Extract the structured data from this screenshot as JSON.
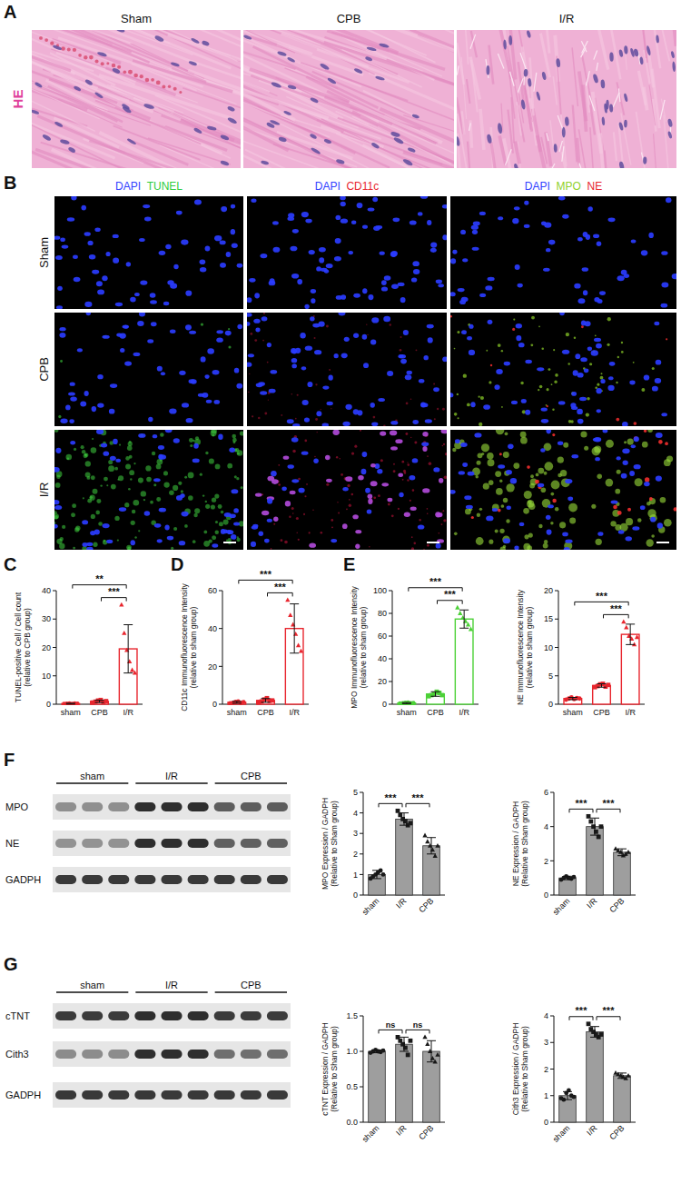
{
  "figure": {
    "panel_labels": [
      "A",
      "B",
      "C",
      "D",
      "E",
      "F",
      "G"
    ],
    "he": {
      "stain": "HE",
      "stain_color": "#e0409a",
      "columns": [
        "Sham",
        "CPB",
        "I/R"
      ]
    },
    "fluorescence": {
      "rows": [
        "Sham",
        "CPB",
        "I/R"
      ],
      "columns": [
        [
          {
            "text": "DAPI",
            "color": "#3040ff"
          },
          {
            "text": "TUNEL",
            "color": "#2ecc40"
          }
        ],
        [
          {
            "text": "DAPI",
            "color": "#3040ff"
          },
          {
            "text": "CD11c",
            "color": "#e8262e"
          }
        ],
        [
          {
            "text": "DAPI",
            "color": "#3040ff"
          },
          {
            "text": "MPO",
            "color": "#8fd12a"
          },
          {
            "text": "NE",
            "color": "#e8262e"
          }
        ]
      ]
    },
    "blots": [
      {
        "lanes": [
          "sham",
          "I/R",
          "CPB"
        ],
        "rows": [
          "MPO",
          "NE",
          "GADPH"
        ]
      },
      {
        "lanes": [
          "sham",
          "I/R",
          "CPB"
        ],
        "rows": [
          "cTNT",
          "Cith3",
          "GADPH"
        ]
      }
    ]
  },
  "chart_data": [
    {
      "type": "bar",
      "ylabel": [
        "TUNEL-positive Cell / Cell count",
        "(relative to CPB group)"
      ],
      "categories": [
        "sham",
        "CPB",
        "I/R"
      ],
      "values": [
        0.2,
        1.0,
        19.5
      ],
      "errors": [
        0.15,
        0.4,
        8.5
      ],
      "points": [
        [
          0.1,
          0.2,
          0.3,
          0.15,
          0.25,
          0.2
        ],
        [
          0.6,
          0.9,
          1.3,
          1.5,
          0.8,
          1.1
        ],
        [
          35,
          25,
          19,
          15,
          12,
          11
        ]
      ],
      "color": "#e8262e",
      "ylim": [
        0,
        40
      ],
      "yticks": [
        0,
        10,
        20,
        30,
        40
      ],
      "annotations": [
        {
          "pair": [
            1,
            2
          ],
          "text": "***"
        },
        {
          "pair": [
            0,
            2
          ],
          "text": "**"
        }
      ]
    },
    {
      "type": "bar",
      "ylabel": [
        "CD11c Immunofluorescence Intensity",
        "(relative to sham group)"
      ],
      "categories": [
        "sham",
        "CPB",
        "I/R"
      ],
      "values": [
        1.0,
        2.0,
        40
      ],
      "errors": [
        0.5,
        1.0,
        13
      ],
      "points": [
        [
          0.5,
          0.8,
          1.2,
          1.5,
          0.7,
          1.1
        ],
        [
          1.0,
          1.5,
          2.5,
          3.2,
          1.8,
          2.0
        ],
        [
          55,
          47,
          42,
          37,
          31,
          28
        ]
      ],
      "color": "#e8262e",
      "ylim": [
        0,
        60
      ],
      "yticks": [
        0,
        20,
        40,
        60
      ],
      "annotations": [
        {
          "pair": [
            1,
            2
          ],
          "text": "***"
        },
        {
          "pair": [
            0,
            2
          ],
          "text": "***"
        }
      ]
    },
    {
      "type": "bar",
      "ylabel": [
        "MPO Immunofluorescence Intensity",
        "(relative to sham group)"
      ],
      "categories": [
        "sham",
        "CPB",
        "I/R"
      ],
      "values": [
        1.0,
        9.0,
        75
      ],
      "errors": [
        0.5,
        2.0,
        8
      ],
      "points": [
        [
          0.6,
          0.9,
          1.2,
          1.4,
          0.8,
          1.0
        ],
        [
          7,
          8,
          9,
          11,
          10,
          8
        ],
        [
          85,
          80,
          76,
          73,
          70,
          66
        ]
      ],
      "color": "#4cd137",
      "ylim": [
        0,
        100
      ],
      "yticks": [
        0,
        20,
        40,
        60,
        80,
        100
      ],
      "annotations": [
        {
          "pair": [
            1,
            2
          ],
          "text": "***"
        },
        {
          "pair": [
            0,
            2
          ],
          "text": "***"
        }
      ]
    },
    {
      "type": "bar",
      "ylabel": [
        "NE Immunofluorescence Intensity",
        "(relative to sham group)"
      ],
      "categories": [
        "sham",
        "CPB",
        "I/R"
      ],
      "values": [
        1.0,
        3.3,
        12.3
      ],
      "errors": [
        0.2,
        0.3,
        1.8
      ],
      "points": [
        [
          0.8,
          1.0,
          1.2,
          0.9,
          1.1,
          1.0
        ],
        [
          3.0,
          3.2,
          3.5,
          3.6,
          3.1,
          3.4
        ],
        [
          14.5,
          13.5,
          12.0,
          11.5,
          10.5,
          11.8
        ]
      ],
      "color": "#e8262e",
      "ylim": [
        0,
        20
      ],
      "yticks": [
        0,
        5,
        10,
        15,
        20
      ],
      "annotations": [
        {
          "pair": [
            1,
            2
          ],
          "text": "***"
        },
        {
          "pair": [
            0,
            2
          ],
          "text": "***"
        }
      ]
    },
    {
      "type": "bar",
      "ylabel": [
        "MPO Expression / GADPH",
        "(Relative to Sham group)"
      ],
      "categories": [
        "sham",
        "I/R",
        "CPB"
      ],
      "values": [
        1.0,
        3.7,
        2.4
      ],
      "errors": [
        0.2,
        0.3,
        0.4
      ],
      "points": [
        [
          0.8,
          0.9,
          1.0,
          1.1,
          1.2,
          1.0
        ],
        [
          4.1,
          3.9,
          3.7,
          3.6,
          3.4,
          3.5
        ],
        [
          2.9,
          2.6,
          2.4,
          2.2,
          1.9,
          2.4
        ]
      ],
      "color": "#9e9e9e",
      "ylim": [
        0,
        5
      ],
      "yticks": [
        0,
        1,
        2,
        3,
        4,
        5
      ],
      "annotations": [
        {
          "pair": [
            0,
            1
          ],
          "text": "***"
        },
        {
          "pair": [
            1,
            2
          ],
          "text": "***"
        }
      ]
    },
    {
      "type": "bar",
      "ylabel": [
        "NE Expression / GADPH",
        "(Relative to Sham group)"
      ],
      "categories": [
        "sham",
        "I/R",
        "CPB"
      ],
      "values": [
        1.0,
        4.0,
        2.5
      ],
      "errors": [
        0.1,
        0.5,
        0.2
      ],
      "points": [
        [
          0.9,
          1.0,
          1.1,
          1.0,
          0.95,
          1.05
        ],
        [
          4.6,
          4.3,
          4.0,
          3.7,
          3.4,
          4.0
        ],
        [
          2.7,
          2.6,
          2.5,
          2.3,
          2.4,
          2.5
        ]
      ],
      "color": "#9e9e9e",
      "ylim": [
        0,
        6
      ],
      "yticks": [
        0,
        2,
        4,
        6
      ],
      "annotations": [
        {
          "pair": [
            0,
            1
          ],
          "text": "***"
        },
        {
          "pair": [
            1,
            2
          ],
          "text": "***"
        }
      ]
    },
    {
      "type": "bar",
      "ylabel": [
        "cTNT Expression / GADPH",
        "(Relative to Sham group)"
      ],
      "categories": [
        "sham",
        "I/R",
        "CPB"
      ],
      "values": [
        1.0,
        1.1,
        1.0
      ],
      "errors": [
        0.02,
        0.1,
        0.15
      ],
      "points": [
        [
          0.98,
          1.0,
          1.02,
          1.0,
          0.99,
          1.01
        ],
        [
          1.2,
          1.15,
          1.1,
          1.05,
          0.95,
          1.15
        ],
        [
          1.2,
          1.1,
          1.0,
          0.9,
          0.85,
          0.95
        ]
      ],
      "color": "#9e9e9e",
      "ylim": [
        0,
        1.5
      ],
      "yticks": [
        {
          "value": 0,
          "label": "0.0"
        },
        0.5,
        {
          "value": 1,
          "label": "1.0"
        },
        1.5
      ],
      "annotations": [
        {
          "pair": [
            0,
            1
          ],
          "text": "ns"
        },
        {
          "pair": [
            1,
            2
          ],
          "text": "ns"
        }
      ]
    },
    {
      "type": "bar",
      "ylabel": [
        "Cith3 Expression / GADPH",
        "(Relative to Sham group)"
      ],
      "categories": [
        "sham",
        "I/R",
        "CPB"
      ],
      "values": [
        1.0,
        3.4,
        1.75
      ],
      "errors": [
        0.15,
        0.2,
        0.1
      ],
      "points": [
        [
          0.9,
          0.85,
          1.1,
          1.2,
          1.0,
          0.95
        ],
        [
          3.7,
          3.5,
          3.4,
          3.3,
          3.2,
          3.3
        ],
        [
          1.85,
          1.8,
          1.75,
          1.7,
          1.65,
          1.75
        ]
      ],
      "color": "#9e9e9e",
      "ylim": [
        0,
        4
      ],
      "yticks": [
        0,
        1,
        2,
        3,
        4
      ],
      "annotations": [
        {
          "pair": [
            0,
            1
          ],
          "text": "***"
        },
        {
          "pair": [
            1,
            2
          ],
          "text": "***"
        }
      ]
    }
  ]
}
